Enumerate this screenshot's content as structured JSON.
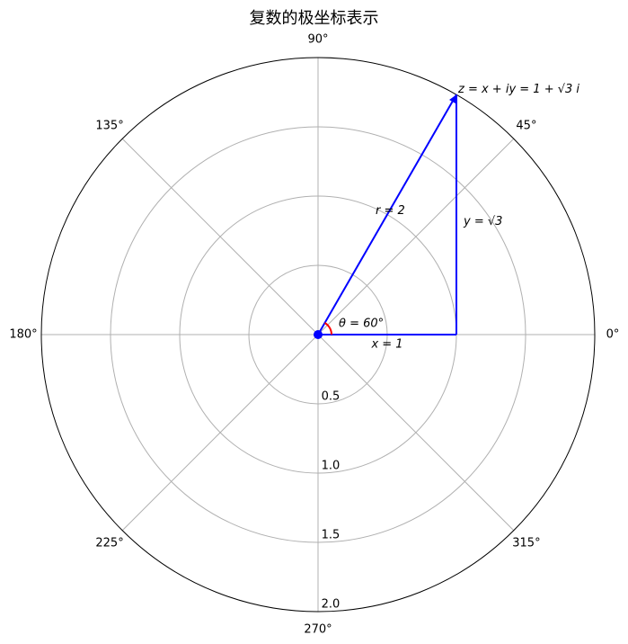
{
  "chart_data": {
    "type": "polar",
    "title": "复数的极坐标表示",
    "theta_tick_labels": [
      "0°",
      "45°",
      "90°",
      "135°",
      "180°",
      "225°",
      "270°",
      "315°"
    ],
    "theta_ticks_deg": [
      0,
      45,
      90,
      135,
      180,
      225,
      270,
      315
    ],
    "r_tick_labels": [
      "0.5",
      "1.0",
      "1.5",
      "2.0"
    ],
    "r_ticks": [
      0.5,
      1.0,
      1.5,
      2.0
    ],
    "rlim": [
      0,
      2
    ],
    "grid": true,
    "point": {
      "r": 2,
      "theta_deg": 60,
      "x": 1,
      "y": 1.732
    },
    "annotations": {
      "point_label": "z = x + iy = 1 + √3 i",
      "r_label": "r = 2",
      "x_label": "x = 1",
      "y_label": "y = √3",
      "theta_label": "θ = 60°"
    },
    "colors": {
      "vector": "#0000ff",
      "angle_arc": "#ff0000",
      "grid": "#b0b0b0",
      "origin_marker": "#0000ff"
    }
  }
}
